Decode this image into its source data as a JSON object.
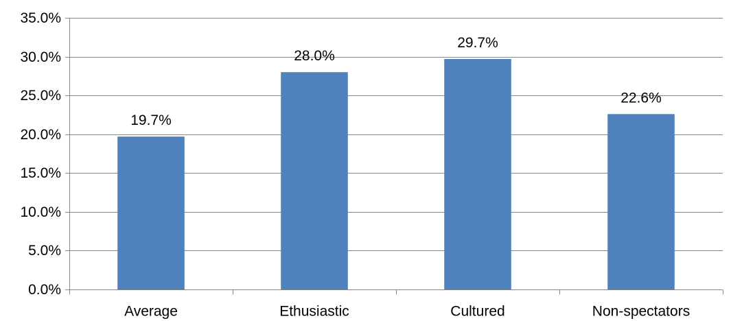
{
  "chart_data": {
    "type": "bar",
    "title": "",
    "xlabel": "",
    "ylabel": "",
    "categories": [
      "Average",
      "Ethusiastic",
      "Cultured",
      "Non-spectators"
    ],
    "series": [
      {
        "values": [
          19.7,
          28.0,
          29.7,
          22.6
        ],
        "color": "#4F81BD"
      }
    ],
    "data_labels": [
      "19.7%",
      "28.0%",
      "29.7%",
      "22.6%"
    ],
    "ylim": [
      0,
      35
    ],
    "y_ticks": [
      0,
      5,
      10,
      15,
      20,
      25,
      30,
      35
    ],
    "y_tick_labels": [
      "0.0%",
      "5.0%",
      "10.0%",
      "15.0%",
      "20.0%",
      "25.0%",
      "30.0%",
      "35.0%"
    ],
    "grid": true,
    "legend": "none"
  }
}
